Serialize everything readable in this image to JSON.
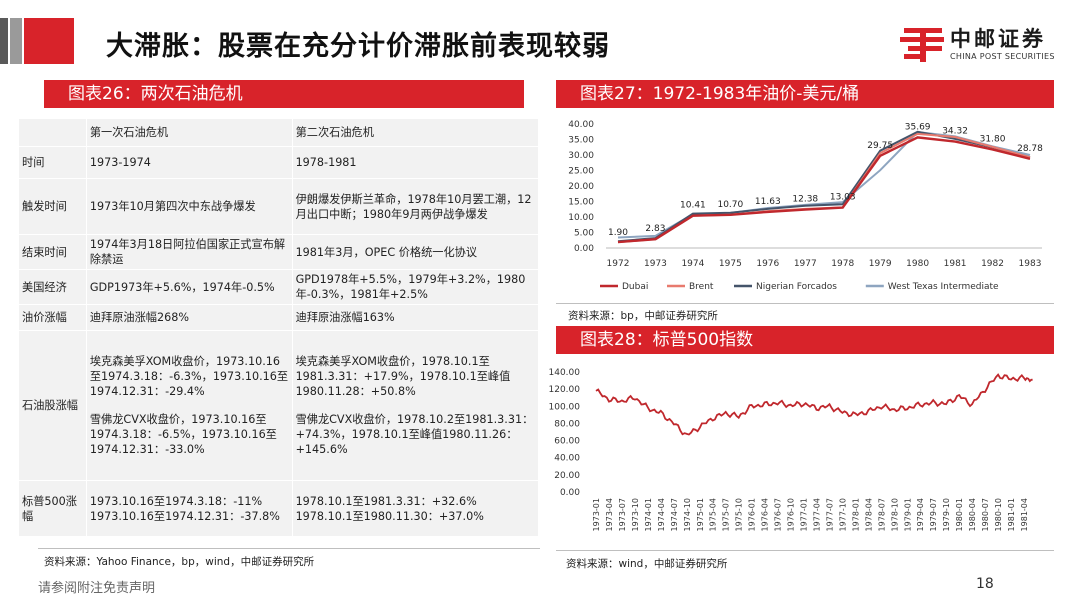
{
  "header": {
    "title": "大滞胀：股票在充分计价滞胀前表现较弱",
    "logo_cn": "中邮证券",
    "logo_en": "CHINA POST SECURITIES"
  },
  "panel26": {
    "title": "图表26：两次石油危机",
    "columns": [
      "",
      "第一次石油危机",
      "第二次石油危机"
    ],
    "rows": [
      {
        "label": "时间",
        "first": "1973-1974",
        "second": "1978-1981"
      },
      {
        "label": "触发时间",
        "first": "1973年10月第四次中东战争爆发",
        "second": "伊朗爆发伊斯兰革命，1978年10月罢工潮，12月出口中断；1980年9月两伊战争爆发"
      },
      {
        "label": "结束时间",
        "first": "1974年3月18日阿拉伯国家正式宣布解除禁运",
        "second": "1981年3月，OPEC 价格统一化协议"
      },
      {
        "label": "美国经济",
        "first": "GDP1973年+5.6%，1974年-0.5%",
        "second": "GPD1978年+5.5%，1979年+3.2%，1980年-0.3%，1981年+2.5%"
      },
      {
        "label": "油价涨幅",
        "first": "迪拜原油涨幅268%",
        "second": "迪拜原油涨幅163%"
      },
      {
        "label": "石油股涨幅",
        "first_a": "埃克森美孚XOM收盘价，1973.10.16至1974.3.18：-6.3%，1973.10.16至1974.12.31：-29.4%",
        "first_b": "雪佛龙CVX收盘价，1973.10.16至1974.3.18：-6.5%，1973.10.16至1974.12.31：-33.0%",
        "second_a": "埃克森美孚XOM收盘价，1978.10.1至1981.3.31：+17.9%，1978.10.1至峰值1980.11.28：+50.8%",
        "second_b": "雪佛龙CVX收盘价，1978.10.2至1981.3.31：+74.3%，1978.10.1至峰值1980.11.26：+145.6%"
      },
      {
        "label": "标普500涨幅",
        "first": "1973.10.16至1974.3.18：-11%\n1973.10.16至1974.12.31：-37.8%",
        "second": "1978.10.1至1981.3.31：+32.6%\n1978.10.1至1980.11.30：+37.0%"
      }
    ],
    "source": "资料来源：Yahoo Finance，bp，wind，中邮证券研究所"
  },
  "panel27": {
    "title": "图表27：1972-1983年油价-美元/桶",
    "source": "资料来源：bp，中邮证券研究所",
    "colors": {
      "Dubai": "#c0282d",
      "Brent": "#e87a6e",
      "Nigerian Forcados": "#44546a",
      "West Texas Intermediate": "#8ea5c0"
    },
    "chart_data": {
      "type": "line",
      "x": [
        "1972",
        "1973",
        "1974",
        "1975",
        "1976",
        "1977",
        "1978",
        "1979",
        "1980",
        "1981",
        "1982",
        "1983"
      ],
      "ylim": [
        0,
        40
      ],
      "yticks": [
        "0.00",
        "5.00",
        "10.00",
        "15.00",
        "20.00",
        "25.00",
        "30.00",
        "35.00",
        "40.00"
      ],
      "series": [
        {
          "name": "Dubai",
          "values": [
            1.9,
            2.83,
            10.41,
            10.7,
            11.63,
            12.38,
            13.03,
            29.75,
            35.69,
            34.32,
            31.8,
            28.78
          ]
        },
        {
          "name": "Brent",
          "values": [
            1.9,
            2.83,
            10.41,
            10.7,
            11.9,
            12.6,
            13.1,
            30.6,
            36.8,
            35.8,
            32.6,
            29.3
          ]
        },
        {
          "name": "Nigerian Forcados",
          "values": [
            2.2,
            3.2,
            11.1,
            11.4,
            12.6,
            13.6,
            14.1,
            31.4,
            37.5,
            35.2,
            32.5,
            29.3
          ]
        },
        {
          "name": "West Texas Intermediate",
          "values": [
            3.4,
            3.9,
            10.9,
            11.3,
            12.9,
            13.9,
            14.8,
            25.1,
            37.4,
            36.0,
            32.8,
            30.0
          ]
        }
      ],
      "data_labels": [
        "1.90",
        "2.83",
        "10.41",
        "10.70",
        "11.63",
        "12.38",
        "13.03",
        "29.75",
        "35.69",
        "34.32",
        "31.80",
        "28.78"
      ],
      "legend": "bottom"
    }
  },
  "panel28": {
    "title": "图表28：标普500指数",
    "source": "资料来源：wind，中邮证券研究所",
    "color": "#c0282d",
    "chart_data": {
      "type": "line",
      "ylim": [
        0,
        140
      ],
      "yticks": [
        "0.00",
        "20.00",
        "40.00",
        "60.00",
        "80.00",
        "100.00",
        "120.00",
        "140.00"
      ],
      "xticks": [
        "1973-01",
        "1973-04",
        "1973-07",
        "1973-10",
        "1974-01",
        "1974-04",
        "1974-07",
        "1974-10",
        "1975-01",
        "1975-04",
        "1975-07",
        "1975-10",
        "1976-01",
        "1976-04",
        "1976-07",
        "1976-10",
        "1977-01",
        "1977-04",
        "1977-07",
        "1977-10",
        "1978-01",
        "1978-04",
        "1978-07",
        "1978-10",
        "1979-01",
        "1979-04",
        "1979-07",
        "1979-10",
        "1980-01",
        "1980-04",
        "1980-07",
        "1980-10",
        "1981-01",
        "1981-04"
      ],
      "x": [
        "1973-01",
        "1973-04",
        "1973-07",
        "1973-10",
        "1974-01",
        "1974-04",
        "1974-07",
        "1974-10",
        "1975-01",
        "1975-04",
        "1975-07",
        "1975-10",
        "1976-01",
        "1976-04",
        "1976-07",
        "1976-10",
        "1977-01",
        "1977-04",
        "1977-07",
        "1977-10",
        "1978-01",
        "1978-04",
        "1978-07",
        "1978-10",
        "1979-01",
        "1979-04",
        "1979-07",
        "1979-10",
        "1980-01",
        "1980-04",
        "1980-07",
        "1980-10",
        "1981-01",
        "1981-04",
        "1981-06"
      ],
      "series": [
        {
          "name": "",
          "values": [
            118,
            108,
            106,
            110,
            98,
            92,
            80,
            66,
            76,
            86,
            92,
            88,
            100,
            102,
            104,
            101,
            103,
            98,
            100,
            93,
            90,
            94,
            100,
            96,
            98,
            102,
            104,
            103,
            112,
            102,
            120,
            136,
            132,
            133,
            131
          ]
        }
      ]
    }
  },
  "footer": {
    "disclaimer": "请参阅附注免责声明",
    "page": "18"
  }
}
